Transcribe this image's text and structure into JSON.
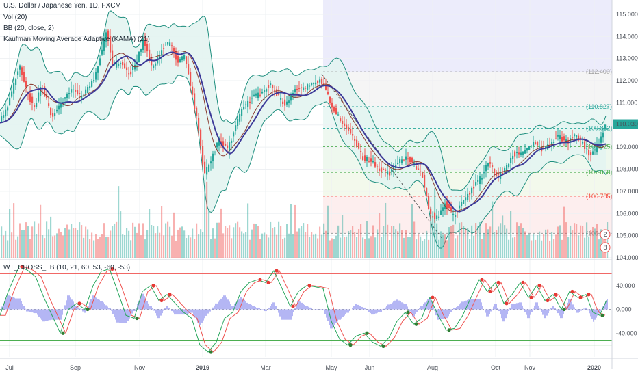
{
  "header": {
    "symbol_title": "U.S. Dollar / Japanese Yen, 1D, FXCM",
    "indicators": [
      "Vol (20)",
      "BB (20, close, 2)",
      "Kaufman Moving Average Adaptive (KAMA) (21)"
    ]
  },
  "oscillator": {
    "title": "WT_CROSS_LB (10, 21, 60, 53, -60, -53)"
  },
  "colors": {
    "up": "#26a69a",
    "down": "#ef5350",
    "bb_line": "#1e8e7e",
    "bb_fill": "#e3f4f1",
    "kama": "#3d3a99",
    "basis": "#8b3a2f",
    "wt1": "#26a65b",
    "wt2": "#ef5350",
    "wt_hist": "#9b9ef0",
    "projection_bg": "#ececfb"
  },
  "chart_data": [
    {
      "type": "candlestick",
      "title": "U.S. Dollar / Japanese Yen, 1D, FXCM",
      "x_ticks": [
        "Jul",
        "Sep",
        "Nov",
        "2019",
        "Mar",
        "May",
        "Jun",
        "Aug",
        "Oct",
        "Nov",
        "2020"
      ],
      "y_ticks": [
        "115.000",
        "114.000",
        "113.000",
        "112.000",
        "111.000",
        "110.000",
        "109.000",
        "108.000",
        "107.000",
        "106.000",
        "105.000",
        "104.000"
      ],
      "ylim": [
        104.0,
        115.4
      ],
      "last_price": "110.039",
      "price_path": [
        [
          0,
          110.1
        ],
        [
          12,
          110.8
        ],
        [
          30,
          112.7
        ],
        [
          40,
          111.6
        ],
        [
          52,
          110.7
        ],
        [
          62,
          111.8
        ],
        [
          78,
          110.4
        ],
        [
          94,
          111.1
        ],
        [
          108,
          111.6
        ],
        [
          120,
          111.2
        ],
        [
          140,
          112.2
        ],
        [
          150,
          113.3
        ],
        [
          158,
          114.4
        ],
        [
          166,
          112.6
        ],
        [
          178,
          112.9
        ],
        [
          190,
          112.3
        ],
        [
          200,
          112.7
        ],
        [
          212,
          113.9
        ],
        [
          224,
          112.5
        ],
        [
          240,
          113.5
        ],
        [
          252,
          113.7
        ],
        [
          262,
          112.8
        ],
        [
          272,
          113.2
        ],
        [
          282,
          111.5
        ],
        [
          292,
          109.8
        ],
        [
          300,
          107.7
        ],
        [
          312,
          108.6
        ],
        [
          322,
          109.3
        ],
        [
          334,
          108.9
        ],
        [
          344,
          109.7
        ],
        [
          356,
          110.8
        ],
        [
          370,
          111.2
        ],
        [
          384,
          111.5
        ],
        [
          396,
          111.8
        ],
        [
          410,
          111.2
        ],
        [
          420,
          110.9
        ],
        [
          432,
          111.6
        ],
        [
          446,
          111.6
        ],
        [
          456,
          111.9
        ],
        [
          470,
          112.0
        ],
        [
          478,
          111.6
        ],
        [
          488,
          110.8
        ],
        [
          498,
          110.3
        ],
        [
          510,
          109.8
        ],
        [
          520,
          109.3
        ],
        [
          532,
          108.5
        ],
        [
          544,
          108.4
        ],
        [
          556,
          108.0
        ],
        [
          570,
          107.8
        ],
        [
          584,
          108.3
        ],
        [
          596,
          108.6
        ],
        [
          606,
          108.2
        ],
        [
          618,
          107.9
        ],
        [
          630,
          106.0
        ],
        [
          640,
          105.8
        ],
        [
          652,
          106.5
        ],
        [
          664,
          105.9
        ],
        [
          672,
          106.2
        ],
        [
          684,
          106.8
        ],
        [
          694,
          107.2
        ],
        [
          704,
          107.6
        ],
        [
          716,
          108.3
        ],
        [
          728,
          107.6
        ],
        [
          740,
          108.0
        ],
        [
          750,
          108.7
        ],
        [
          762,
          108.6
        ],
        [
          772,
          109.0
        ],
        [
          782,
          109.3
        ],
        [
          794,
          108.9
        ],
        [
          806,
          109.2
        ],
        [
          818,
          109.5
        ],
        [
          830,
          109.2
        ],
        [
          842,
          109.5
        ],
        [
          852,
          109.2
        ],
        [
          864,
          108.6
        ],
        [
          872,
          108.9
        ],
        [
          882,
          109.6
        ],
        [
          886,
          110.04
        ]
      ],
      "fib_levels": [
        {
          "label": "(112.400)",
          "value": 112.4,
          "color": "#9e9e9e"
        },
        {
          "label": "(110.827)",
          "value": 110.827,
          "color": "#26a69a"
        },
        {
          "label": "(109.852)",
          "value": 109.852,
          "color": "#26a69a"
        },
        {
          "label": "(109.025)",
          "value": 109.025,
          "color": "#4caf50"
        },
        {
          "label": "(107.858)",
          "value": 107.858,
          "color": "#4caf50"
        },
        {
          "label": "(106.785)",
          "value": 106.785,
          "color": "#f44336"
        },
        {
          "label": "(105.0...)",
          "value": 105.1,
          "color": "#9e9e9e"
        }
      ],
      "badges": [
        "2",
        "8"
      ]
    },
    {
      "type": "line",
      "title": "WT_CROSS_LB (10, 21, 60, 53, -60, -53)",
      "y_ticks": [
        "40.000",
        "0.000",
        "-40.000"
      ],
      "ylim": [
        -80,
        80
      ],
      "levels": [
        60,
        53,
        -53,
        -60
      ],
      "series": [
        {
          "points": [
            [
              0,
              -10
            ],
            [
              12,
              30
            ],
            [
              28,
              72
            ],
            [
              40,
              66
            ],
            [
              52,
              55
            ],
            [
              64,
              20
            ],
            [
              76,
              -10
            ],
            [
              88,
              -40
            ],
            [
              100,
              0
            ],
            [
              112,
              10
            ],
            [
              124,
              0
            ],
            [
              136,
              40
            ],
            [
              148,
              64
            ],
            [
              160,
              68
            ],
            [
              172,
              30
            ],
            [
              184,
              -10
            ],
            [
              196,
              -15
            ],
            [
              208,
              30
            ],
            [
              220,
              40
            ],
            [
              232,
              15
            ],
            [
              244,
              25
            ],
            [
              256,
              10
            ],
            [
              268,
              -5
            ],
            [
              280,
              -15
            ],
            [
              292,
              -60
            ],
            [
              304,
              -72
            ],
            [
              316,
              -55
            ],
            [
              328,
              -15
            ],
            [
              340,
              -5
            ],
            [
              352,
              30
            ],
            [
              364,
              45
            ],
            [
              376,
              50
            ],
            [
              388,
              45
            ],
            [
              400,
              65
            ],
            [
              412,
              35
            ],
            [
              424,
              5
            ],
            [
              436,
              30
            ],
            [
              448,
              40
            ],
            [
              460,
              38
            ],
            [
              472,
              35
            ],
            [
              484,
              -20
            ],
            [
              496,
              -50
            ],
            [
              508,
              -60
            ],
            [
              520,
              -45
            ],
            [
              532,
              -40
            ],
            [
              544,
              -55
            ],
            [
              556,
              -62
            ],
            [
              568,
              -48
            ],
            [
              580,
              -20
            ],
            [
              592,
              -5
            ],
            [
              604,
              -25
            ],
            [
              616,
              -15
            ],
            [
              628,
              20
            ],
            [
              640,
              -10
            ],
            [
              652,
              -35
            ],
            [
              664,
              -32
            ],
            [
              676,
              -10
            ],
            [
              688,
              20
            ],
            [
              700,
              50
            ],
            [
              712,
              30
            ],
            [
              724,
              45
            ],
            [
              736,
              10
            ],
            [
              748,
              25
            ],
            [
              760,
              45
            ],
            [
              772,
              20
            ],
            [
              784,
              40
            ],
            [
              796,
              15
            ],
            [
              808,
              25
            ],
            [
              820,
              0
            ],
            [
              832,
              30
            ],
            [
              844,
              20
            ],
            [
              856,
              25
            ],
            [
              866,
              -5
            ],
            [
              876,
              -10
            ],
            [
              886,
              15
            ]
          ]
        }
      ]
    }
  ]
}
